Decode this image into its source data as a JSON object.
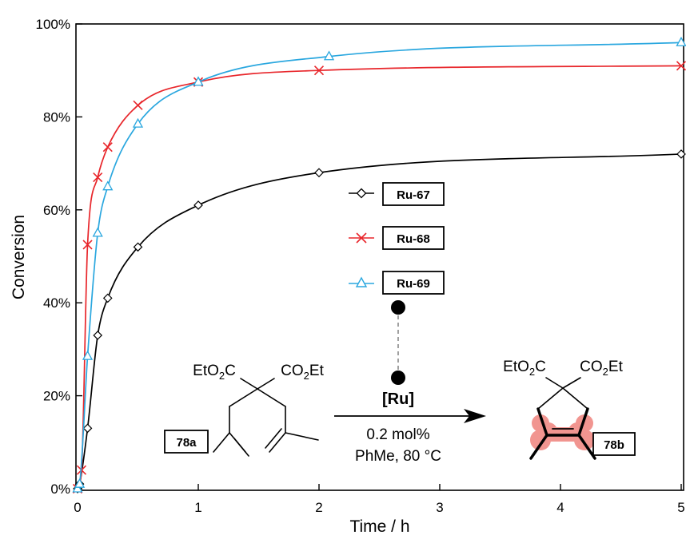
{
  "chart_data": {
    "type": "line",
    "xlabel": "Time / h",
    "ylabel": "Conversion",
    "xlim": [
      0,
      5
    ],
    "ylim": [
      0,
      100
    ],
    "x_ticks": [
      "0",
      "1",
      "2",
      "3",
      "4",
      "5"
    ],
    "y_ticks": [
      "0%",
      "20%",
      "40%",
      "60%",
      "80%",
      "100%"
    ],
    "grid": false,
    "legend_position": "center",
    "series": [
      {
        "name": "Ru-67",
        "color": "#000000",
        "marker": "diamond",
        "x": [
          0,
          0.017,
          0.083,
          0.167,
          0.25,
          0.5,
          1,
          2,
          5
        ],
        "y": [
          0,
          1,
          13,
          33,
          41,
          52,
          61,
          68,
          72
        ]
      },
      {
        "name": "Ru-68",
        "color": "#e8262b",
        "marker": "cross",
        "x": [
          0,
          0.033,
          0.083,
          0.167,
          0.25,
          0.5,
          1,
          2,
          5
        ],
        "y": [
          0,
          4,
          52.5,
          67,
          73.5,
          82.5,
          87.5,
          90,
          91
        ]
      },
      {
        "name": "Ru-69",
        "color": "#2aa7df",
        "marker": "triangle",
        "x": [
          0,
          0.017,
          0.083,
          0.167,
          0.25,
          0.5,
          1,
          2.083,
          5
        ],
        "y": [
          0,
          1,
          28.5,
          55,
          65,
          78.5,
          87.5,
          93,
          96
        ]
      }
    ],
    "scheme": {
      "substrate_ester_left": "EtO2C",
      "substrate_ester_right": "CO2Et",
      "substrate_label": "78a",
      "catalyst": "[Ru]",
      "loading": "0.2 mol%",
      "conditions": "PhMe, 80 °C",
      "product_ester_left": "EtO2C",
      "product_ester_right": "CO2Et",
      "product_label": "78b",
      "highlight_color": "#f08a84"
    }
  }
}
